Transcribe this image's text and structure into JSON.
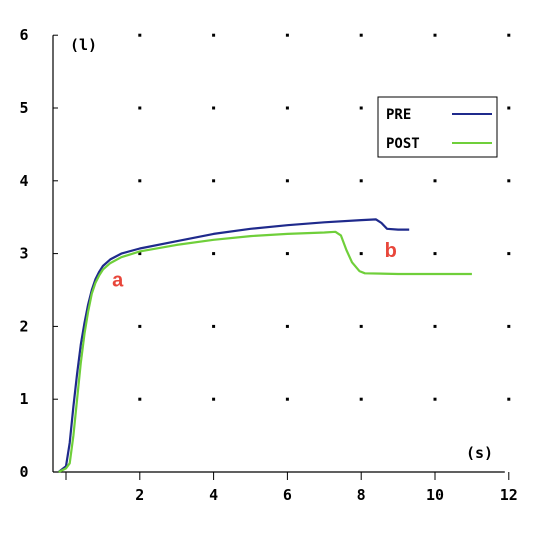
{
  "chart_data": {
    "type": "line",
    "xunit": "(s)",
    "yunit": "(l)",
    "xlim": [
      -0.2,
      12
    ],
    "ylim": [
      0,
      6
    ],
    "x_ticks": [
      2,
      4,
      6,
      8,
      10,
      12
    ],
    "y_ticks": [
      0,
      1,
      2,
      3,
      4,
      5,
      6
    ],
    "grid": "dotted",
    "legend_position": "top-right",
    "series": [
      {
        "name": "PRE",
        "color": "#1f2a8c",
        "points": [
          [
            -0.2,
            0
          ],
          [
            0,
            0.08
          ],
          [
            0.1,
            0.4
          ],
          [
            0.2,
            0.9
          ],
          [
            0.3,
            1.35
          ],
          [
            0.4,
            1.75
          ],
          [
            0.5,
            2.05
          ],
          [
            0.6,
            2.3
          ],
          [
            0.7,
            2.5
          ],
          [
            0.8,
            2.65
          ],
          [
            0.9,
            2.75
          ],
          [
            1.0,
            2.83
          ],
          [
            1.2,
            2.92
          ],
          [
            1.5,
            3.0
          ],
          [
            2.0,
            3.07
          ],
          [
            3.0,
            3.17
          ],
          [
            4.0,
            3.27
          ],
          [
            5.0,
            3.34
          ],
          [
            6.0,
            3.39
          ],
          [
            7.0,
            3.43
          ],
          [
            8.0,
            3.46
          ],
          [
            8.4,
            3.47
          ],
          [
            8.55,
            3.42
          ],
          [
            8.7,
            3.34
          ],
          [
            9.0,
            3.33
          ],
          [
            9.3,
            3.33
          ]
        ]
      },
      {
        "name": "POST",
        "color": "#6fcf3a",
        "points": [
          [
            -0.2,
            0
          ],
          [
            0,
            0.05
          ],
          [
            0.1,
            0.12
          ],
          [
            0.2,
            0.5
          ],
          [
            0.3,
            1.0
          ],
          [
            0.4,
            1.5
          ],
          [
            0.5,
            1.9
          ],
          [
            0.6,
            2.2
          ],
          [
            0.7,
            2.45
          ],
          [
            0.8,
            2.6
          ],
          [
            0.9,
            2.7
          ],
          [
            1.0,
            2.78
          ],
          [
            1.2,
            2.87
          ],
          [
            1.5,
            2.95
          ],
          [
            2.0,
            3.03
          ],
          [
            3.0,
            3.12
          ],
          [
            4.0,
            3.19
          ],
          [
            5.0,
            3.24
          ],
          [
            6.0,
            3.27
          ],
          [
            7.0,
            3.29
          ],
          [
            7.3,
            3.3
          ],
          [
            7.45,
            3.25
          ],
          [
            7.6,
            3.05
          ],
          [
            7.75,
            2.88
          ],
          [
            7.95,
            2.76
          ],
          [
            8.1,
            2.73
          ],
          [
            9.0,
            2.72
          ],
          [
            10.0,
            2.72
          ],
          [
            11.0,
            2.72
          ]
        ]
      }
    ],
    "annotations": [
      {
        "text": "a",
        "x": 1.4,
        "y": 2.55,
        "color": "#e8463a"
      },
      {
        "text": "b",
        "x": 8.8,
        "y": 2.95,
        "color": "#e8463a"
      }
    ]
  }
}
